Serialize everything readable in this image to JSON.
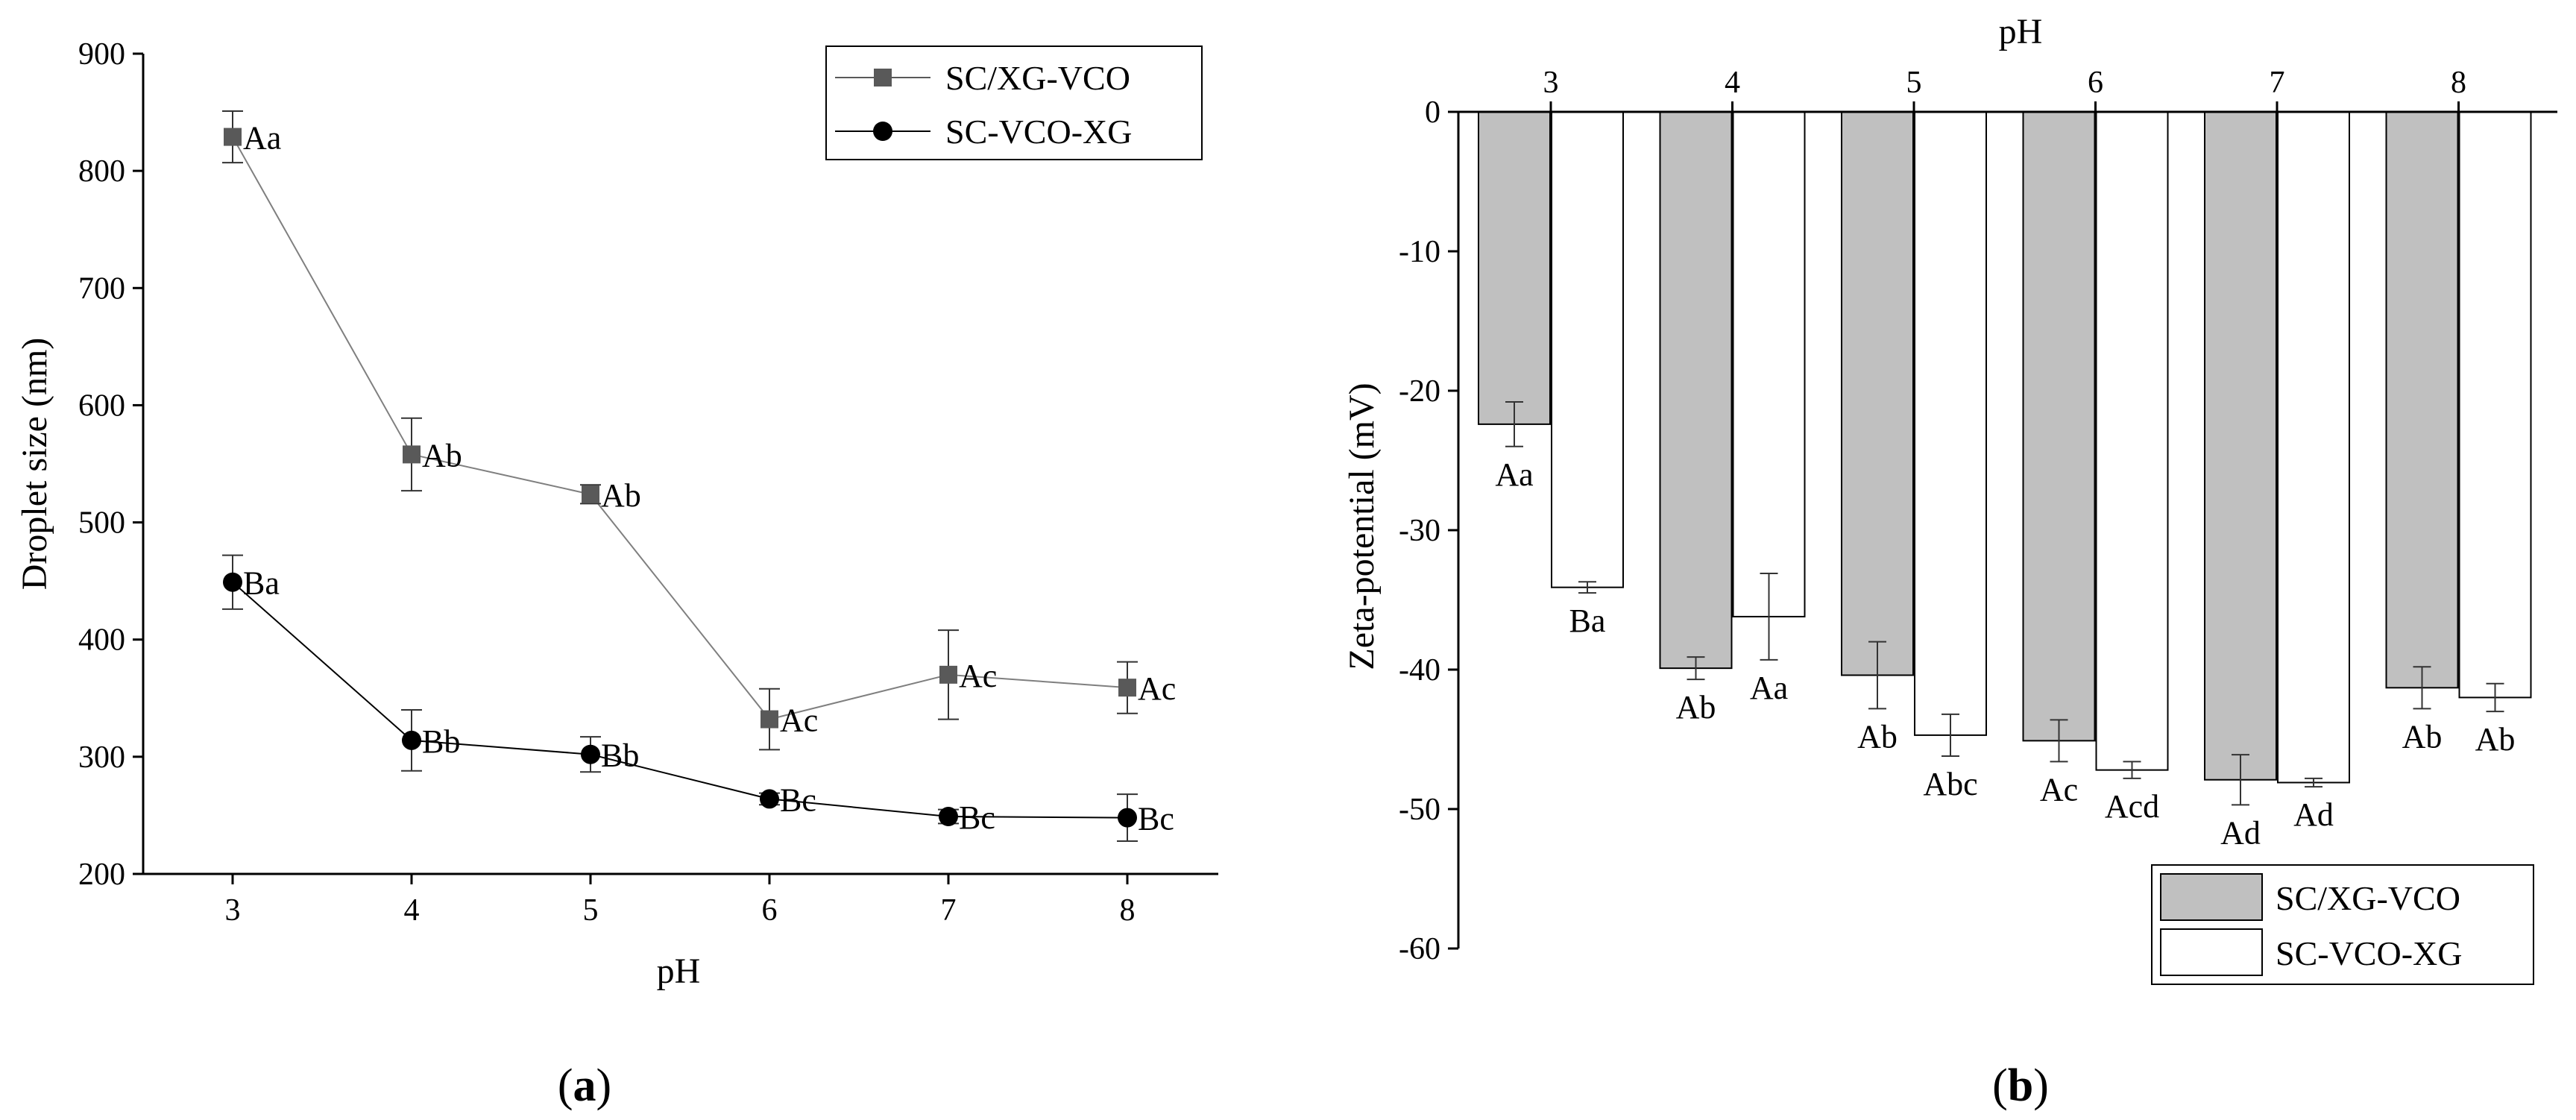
{
  "chart_data": [
    {
      "type": "line",
      "panel_label": "a",
      "xlabel": "pH",
      "ylabel": "Droplet size (nm)",
      "x": [
        3,
        4,
        5,
        6,
        7,
        8
      ],
      "xticks": [
        "3",
        "4",
        "5",
        "6",
        "7",
        "8"
      ],
      "ylim": [
        200,
        900
      ],
      "yticks": [
        200,
        300,
        400,
        500,
        600,
        700,
        800,
        900
      ],
      "grid": false,
      "legend_position": "top-right",
      "series": [
        {
          "name": "SC/XG-VCO",
          "marker": "square",
          "color": "#595959",
          "values": [
            829,
            558,
            524,
            332,
            370,
            359
          ],
          "errors": [
            22,
            31,
            8,
            26,
            38,
            22
          ],
          "labels": [
            "Aa",
            "Ab",
            "Ab",
            "Ac",
            "Ac",
            "Ac"
          ]
        },
        {
          "name": "SC-VCO-XG",
          "marker": "circle",
          "color": "#000000",
          "values": [
            449,
            314,
            302,
            264,
            249,
            248
          ],
          "errors": [
            23,
            26,
            15,
            5,
            6,
            20
          ],
          "labels": [
            "Ba",
            "Bb",
            "Bb",
            "Bc",
            "Bc",
            "Bc"
          ]
        }
      ]
    },
    {
      "type": "bar",
      "panel_label": "b",
      "xlabel": "pH",
      "ylabel": "Zeta-potential (mV)",
      "categories": [
        "3",
        "4",
        "5",
        "6",
        "7",
        "8"
      ],
      "ylim": [
        -60,
        0
      ],
      "yticks": [
        0,
        -10,
        -20,
        -30,
        -40,
        -50,
        -60
      ],
      "xaxis_position": "top",
      "grid": false,
      "legend_position": "bottom-right",
      "series": [
        {
          "name": "SC/XG-VCO",
          "color": "#c0c0c0",
          "values": [
            -22.4,
            -39.9,
            -40.4,
            -45.1,
            -47.9,
            -41.3
          ],
          "errors": [
            1.6,
            0.8,
            2.4,
            1.5,
            1.8,
            1.5
          ],
          "labels": [
            "Aa",
            "Ab",
            "Ab",
            "Ac",
            "Ad",
            "Ab"
          ]
        },
        {
          "name": "SC-VCO-XG",
          "color": "#ffffff",
          "values": [
            -34.1,
            -36.2,
            -44.7,
            -47.2,
            -48.1,
            -42.0
          ],
          "errors": [
            0.4,
            3.1,
            1.5,
            0.6,
            0.3,
            1.0
          ],
          "labels": [
            "Ba",
            "Aa",
            "Abc",
            "Acd",
            "Ad",
            "Ab"
          ]
        }
      ]
    }
  ]
}
